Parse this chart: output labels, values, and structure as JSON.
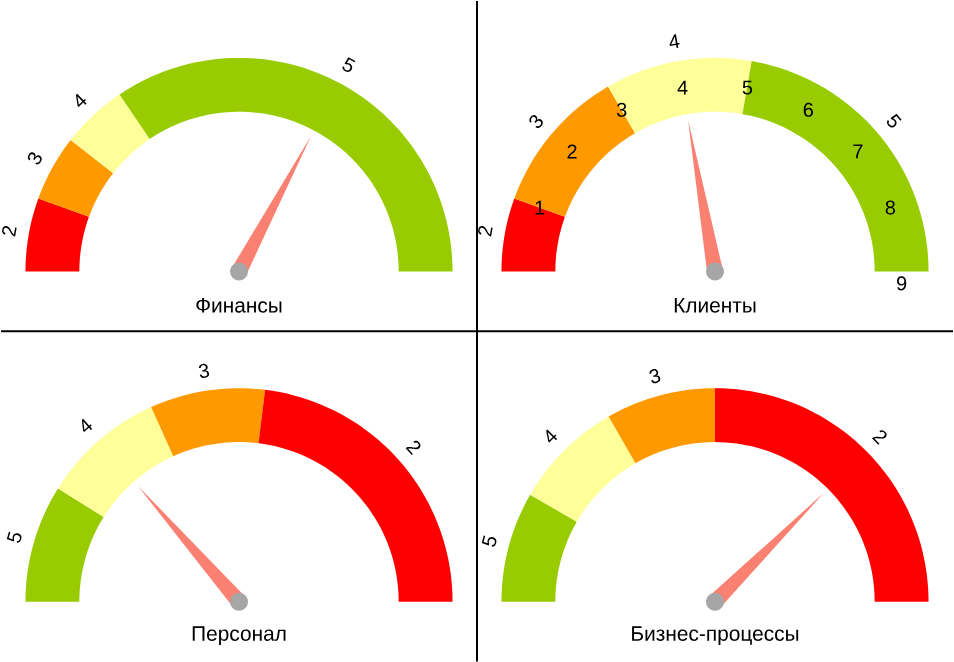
{
  "chart_data": [
    {
      "type": "donut",
      "title": "Финансы",
      "categories": [
        "2",
        "3",
        "4",
        "5"
      ],
      "values": [
        11.1,
        10,
        10,
        68.9
      ],
      "colors": [
        "#ff0000",
        "#ff9900",
        "#ffff99",
        "#99cc00"
      ],
      "needle": "5"
    },
    {
      "type": "donut",
      "title": "Клиенты",
      "categories": [
        "2",
        "3",
        "4",
        "5"
      ],
      "values": [
        11.1,
        22.2,
        22.2,
        44.5
      ],
      "colors": [
        "#ff0000",
        "#ff9900",
        "#ffff99",
        "#99cc00"
      ],
      "needle": "4",
      "annotations": [
        "1",
        "2",
        "3",
        "4",
        "5",
        "6",
        "7",
        "8",
        "9"
      ]
    },
    {
      "type": "donut",
      "title": "Персонал",
      "categories": [
        "5",
        "4",
        "3",
        "2"
      ],
      "values": [
        17.8,
        18.7,
        17.4,
        46.1
      ],
      "colors": [
        "#99cc00",
        "#ffff99",
        "#ff9900",
        "#ff0000"
      ],
      "needle": "4"
    },
    {
      "type": "donut",
      "title": "Бизнес-процессы",
      "categories": [
        "5",
        "4",
        "3",
        "2"
      ],
      "values": [
        16.7,
        16.7,
        16.6,
        50
      ],
      "colors": [
        "#99cc00",
        "#ffff99",
        "#ff9900",
        "#ff0000"
      ],
      "needle": "2"
    }
  ]
}
